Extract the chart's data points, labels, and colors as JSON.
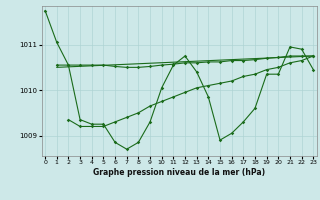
{
  "background_color": "#cde8e8",
  "grid_color": "#afd4d4",
  "line_color": "#1a6b1a",
  "ylabel_ticks": [
    1009,
    1010,
    1011
  ],
  "xlabel_ticks": [
    0,
    1,
    2,
    3,
    4,
    5,
    6,
    7,
    8,
    9,
    10,
    11,
    12,
    13,
    14,
    15,
    16,
    17,
    18,
    19,
    20,
    21,
    22,
    23
  ],
  "xlim": [
    -0.3,
    23.3
  ],
  "ylim": [
    1008.55,
    1011.85
  ],
  "xlabel": "Graphe pression niveau de la mer (hPa)",
  "series1_x": [
    0,
    1,
    2,
    3,
    4,
    5,
    6,
    7,
    8,
    9,
    10,
    11,
    12,
    13,
    14,
    15,
    16,
    17,
    18,
    19,
    20,
    21,
    22,
    23
  ],
  "series1_y": [
    1011.75,
    1011.05,
    1010.55,
    1009.35,
    1009.25,
    1009.25,
    1008.85,
    1008.7,
    1008.85,
    1009.3,
    1010.05,
    1010.55,
    1010.75,
    1010.4,
    1009.85,
    1008.9,
    1009.05,
    1009.3,
    1009.6,
    1010.35,
    1010.35,
    1010.95,
    1010.9,
    1010.45
  ],
  "series2_x": [
    1,
    2,
    3,
    4,
    5,
    6,
    7,
    8,
    9,
    10,
    11,
    12,
    13,
    14,
    15,
    16,
    17,
    18,
    19,
    20,
    21,
    22,
    23
  ],
  "series2_y": [
    1010.55,
    1010.55,
    1010.55,
    1010.55,
    1010.55,
    1010.52,
    1010.5,
    1010.5,
    1010.52,
    1010.55,
    1010.57,
    1010.6,
    1010.6,
    1010.62,
    1010.62,
    1010.65,
    1010.65,
    1010.67,
    1010.7,
    1010.72,
    1010.75,
    1010.75,
    1010.75
  ],
  "series3_x": [
    1,
    23
  ],
  "series3_y": [
    1010.5,
    1010.75
  ],
  "series4_x": [
    2,
    3,
    4,
    5,
    6,
    7,
    8,
    9,
    10,
    11,
    12,
    13,
    14,
    15,
    16,
    17,
    18,
    19,
    20,
    21,
    22,
    23
  ],
  "series4_y": [
    1009.35,
    1009.2,
    1009.2,
    1009.2,
    1009.3,
    1009.4,
    1009.5,
    1009.65,
    1009.75,
    1009.85,
    1009.95,
    1010.05,
    1010.1,
    1010.15,
    1010.2,
    1010.3,
    1010.35,
    1010.45,
    1010.5,
    1010.6,
    1010.65,
    1010.75
  ]
}
